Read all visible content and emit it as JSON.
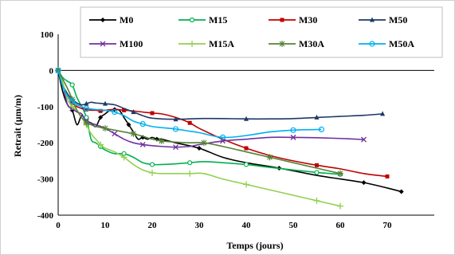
{
  "chart_data": {
    "type": "line",
    "xlabel": "Temps (jours)",
    "ylabel": "Retrait (µm/m)",
    "xlim": [
      0,
      80
    ],
    "ylim": [
      -400,
      100
    ],
    "x_ticks": [
      "0",
      "10",
      "20",
      "30",
      "40",
      "50",
      "60",
      "70"
    ],
    "y_ticks": [
      "100",
      "0",
      "-100",
      "-200",
      "-300",
      "-400"
    ],
    "grid": false,
    "legend": "top-right",
    "series": [
      {
        "name": "M0",
        "color": "#000000",
        "marker": "diamond",
        "x": [
          0,
          1,
          2,
          3,
          4,
          5,
          6,
          7,
          8,
          9,
          10,
          11,
          12,
          13,
          14,
          15,
          16,
          17,
          18,
          19,
          20,
          21,
          22,
          25,
          30,
          35,
          40,
          47,
          55,
          60,
          65,
          70,
          73
        ],
        "y": [
          0,
          -60,
          -95,
          -110,
          -150,
          -125,
          -140,
          -145,
          -155,
          -130,
          -120,
          -110,
          -108,
          -110,
          -130,
          -150,
          -170,
          -190,
          -185,
          -190,
          -185,
          -190,
          -190,
          -200,
          -215,
          -240,
          -255,
          -270,
          -290,
          -300,
          -310,
          -325,
          -335
        ]
      },
      {
        "name": "M15",
        "color": "#00B050",
        "marker": "circle",
        "x": [
          0,
          1,
          2,
          3,
          4,
          5,
          6,
          7,
          8,
          9,
          10,
          12,
          14,
          16,
          18,
          20,
          22,
          25,
          28,
          31,
          35,
          40,
          45,
          50,
          55,
          60
        ],
        "y": [
          0,
          -20,
          -30,
          -40,
          -75,
          -100,
          -130,
          -190,
          -200,
          -210,
          -220,
          -230,
          -230,
          -240,
          -255,
          -260,
          -260,
          -258,
          -255,
          -252,
          -255,
          -260,
          -268,
          -275,
          -282,
          -287
        ]
      },
      {
        "name": "M30",
        "color": "#C00000",
        "marker": "square",
        "x": [
          0,
          1,
          2,
          3,
          4,
          5,
          6,
          7,
          8,
          9,
          10,
          12,
          14,
          16,
          18,
          20,
          22,
          25,
          28,
          30,
          35,
          40,
          45,
          50,
          55,
          60,
          65,
          70
        ],
        "y": [
          0,
          -40,
          -70,
          -90,
          -100,
          -105,
          -108,
          -110,
          -110,
          -112,
          -110,
          -108,
          -110,
          -112,
          -115,
          -118,
          -120,
          -130,
          -145,
          -160,
          -190,
          -215,
          -235,
          -250,
          -262,
          -272,
          -285,
          -293
        ]
      },
      {
        "name": "M50",
        "color": "#1F3864",
        "marker": "triangle",
        "x": [
          0,
          1,
          2,
          3,
          4,
          5,
          6,
          7,
          8,
          10,
          12,
          14,
          16,
          18,
          20,
          25,
          30,
          35,
          40,
          45,
          50,
          55,
          60,
          65,
          69
        ],
        "y": [
          0,
          -40,
          -65,
          -80,
          -90,
          -95,
          -92,
          -88,
          -90,
          -92,
          -95,
          -105,
          -115,
          -125,
          -132,
          -135,
          -133,
          -133,
          -134,
          -134,
          -133,
          -130,
          -127,
          -124,
          -120
        ]
      },
      {
        "name": "M100",
        "color": "#7030A0",
        "marker": "x",
        "x": [
          0,
          1,
          2,
          3,
          4,
          5,
          6,
          8,
          10,
          12,
          14,
          16,
          18,
          20,
          22,
          25,
          28,
          30,
          35,
          40,
          45,
          50,
          55,
          60,
          65
        ],
        "y": [
          0,
          -40,
          -95,
          -105,
          -115,
          -120,
          -140,
          -150,
          -160,
          -175,
          -190,
          -200,
          -205,
          -208,
          -210,
          -212,
          -210,
          -205,
          -195,
          -190,
          -185,
          -185,
          -186,
          -188,
          -191
        ]
      },
      {
        "name": "M15A",
        "color": "#92D050",
        "marker": "plus",
        "x": [
          0,
          1,
          2,
          3,
          4,
          5,
          6,
          7,
          8,
          9,
          10,
          12,
          14,
          16,
          18,
          20,
          22,
          25,
          28,
          31,
          35,
          40,
          45,
          50,
          55,
          60
        ],
        "y": [
          0,
          -35,
          -80,
          -100,
          -110,
          -130,
          -150,
          -175,
          -190,
          -205,
          -215,
          -225,
          -240,
          -260,
          -275,
          -283,
          -285,
          -285,
          -285,
          -285,
          -300,
          -315,
          -330,
          -345,
          -360,
          -375
        ]
      },
      {
        "name": "M30A",
        "color": "#548235",
        "marker": "star",
        "x": [
          0,
          1,
          2,
          3,
          4,
          5,
          6,
          7,
          8,
          10,
          12,
          14,
          16,
          18,
          20,
          22,
          25,
          28,
          31,
          35,
          40,
          45,
          50,
          55,
          60
        ],
        "y": [
          0,
          -25,
          -50,
          -80,
          -110,
          -130,
          -145,
          -150,
          -155,
          -160,
          -165,
          -170,
          -175,
          -182,
          -190,
          -195,
          -198,
          -200,
          -200,
          -210,
          -225,
          -240,
          -255,
          -270,
          -285
        ]
      },
      {
        "name": "M50A",
        "color": "#00B0F0",
        "marker": "circle-open",
        "x": [
          0,
          1,
          2,
          3,
          4,
          5,
          6,
          8,
          10,
          12,
          14,
          16,
          18,
          20,
          22,
          25,
          28,
          30,
          35,
          40,
          45,
          50,
          56
        ],
        "y": [
          0,
          -45,
          -70,
          -85,
          -95,
          -100,
          -105,
          -108,
          -110,
          -115,
          -125,
          -140,
          -148,
          -155,
          -158,
          -162,
          -168,
          -172,
          -185,
          -180,
          -170,
          -165,
          -163
        ]
      }
    ]
  }
}
